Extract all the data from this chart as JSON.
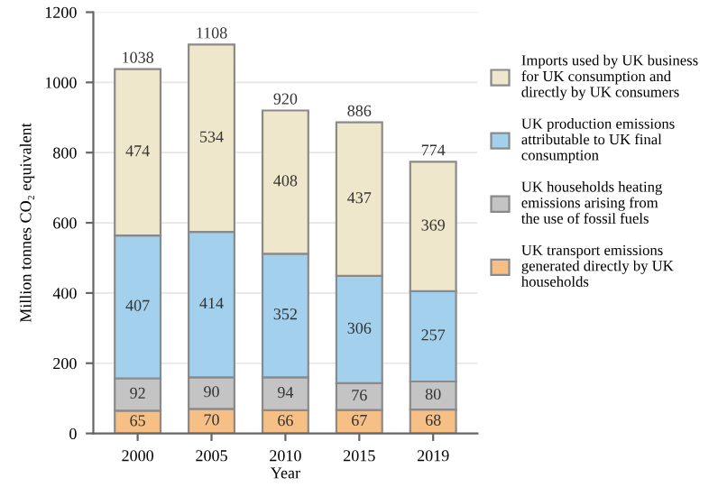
{
  "chart_data": {
    "type": "bar",
    "stacked": true,
    "xlabel": "Year",
    "ylabel": "Million tonnes CO₂ equivalent",
    "categories": [
      "2000",
      "2005",
      "2010",
      "2015",
      "2019"
    ],
    "series": [
      {
        "name": "UK transport emissions\ngenerated directly by UK\nhouseholds",
        "color": "#f5bf85",
        "values": [
          65,
          70,
          66,
          67,
          68
        ]
      },
      {
        "name": "UK households heating\nemissions arising from\nthe use of fossil fuels",
        "color": "#c4c4c4",
        "values": [
          92,
          90,
          94,
          76,
          80
        ]
      },
      {
        "name": "UK production emissions\nattributable to UK final\nconsumption",
        "color": "#a3d0ec",
        "values": [
          407,
          414,
          352,
          306,
          257
        ]
      },
      {
        "name": "Imports used by UK business\nfor UK consumption and\ndirectly by UK consumers",
        "color": "#efe7cb",
        "values": [
          474,
          534,
          408,
          437,
          369
        ]
      }
    ],
    "data_labels": true,
    "totals": [
      "1038",
      "1108",
      "920",
      "886",
      "774"
    ],
    "ylim": [
      0,
      1200
    ],
    "yticks": [
      0,
      200,
      400,
      600,
      800,
      1000,
      1200
    ],
    "grid": "y",
    "legend": "right"
  }
}
